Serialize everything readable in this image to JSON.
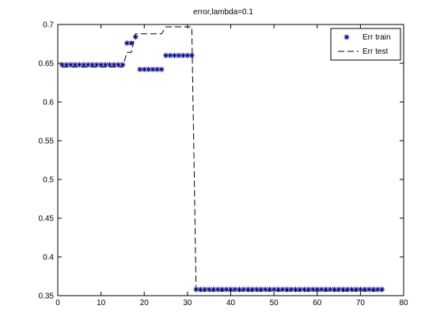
{
  "chart_data": {
    "type": "scatter",
    "title": "error,lambda=0.1",
    "xlim": [
      0,
      80
    ],
    "ylim": [
      0.35,
      0.7
    ],
    "x_ticks": [
      0,
      10,
      20,
      30,
      40,
      50,
      60,
      70,
      80
    ],
    "y_ticks": [
      0.35,
      0.4,
      0.45,
      0.5,
      0.55,
      0.6,
      0.65,
      0.7
    ],
    "grid": false,
    "legend_position": "top-right",
    "series": [
      {
        "name": "Err train",
        "style": "markers",
        "marker": "asterisk",
        "color": "#00008b",
        "x": [
          1,
          2,
          3,
          4,
          5,
          6,
          7,
          8,
          9,
          10,
          11,
          12,
          13,
          14,
          15,
          16,
          17,
          18,
          19,
          20,
          21,
          22,
          23,
          24,
          25,
          26,
          27,
          28,
          29,
          30,
          31,
          32,
          33,
          34,
          35,
          36,
          37,
          38,
          39,
          40,
          41,
          42,
          43,
          44,
          45,
          46,
          47,
          48,
          49,
          50,
          51,
          52,
          53,
          54,
          55,
          56,
          57,
          58,
          59,
          60,
          61,
          62,
          63,
          64,
          65,
          66,
          67,
          68,
          69,
          70,
          71,
          72,
          73,
          74,
          75
        ],
        "y": [
          0.648,
          0.648,
          0.648,
          0.648,
          0.648,
          0.648,
          0.648,
          0.648,
          0.648,
          0.648,
          0.648,
          0.648,
          0.648,
          0.648,
          0.648,
          0.676,
          0.676,
          0.684,
          0.642,
          0.642,
          0.642,
          0.642,
          0.642,
          0.642,
          0.66,
          0.66,
          0.66,
          0.66,
          0.66,
          0.66,
          0.66,
          0.358,
          0.358,
          0.358,
          0.358,
          0.358,
          0.358,
          0.358,
          0.358,
          0.358,
          0.358,
          0.358,
          0.358,
          0.358,
          0.358,
          0.358,
          0.358,
          0.358,
          0.358,
          0.358,
          0.358,
          0.358,
          0.358,
          0.358,
          0.358,
          0.358,
          0.358,
          0.358,
          0.358,
          0.358,
          0.358,
          0.358,
          0.358,
          0.358,
          0.358,
          0.358,
          0.358,
          0.358,
          0.358,
          0.358,
          0.358,
          0.358,
          0.358,
          0.358,
          0.358
        ]
      },
      {
        "name": "Err test",
        "style": "dashed",
        "color": "#000000",
        "x": [
          1,
          2,
          3,
          4,
          5,
          6,
          7,
          8,
          9,
          10,
          11,
          12,
          13,
          14,
          15,
          16,
          17,
          18,
          19,
          20,
          21,
          22,
          23,
          24,
          25,
          26,
          27,
          28,
          29,
          30,
          31,
          32,
          33,
          34,
          35,
          36,
          37,
          38,
          39,
          40,
          41,
          42,
          43,
          44,
          45,
          46,
          47,
          48,
          49,
          50,
          51,
          52,
          53,
          54,
          55,
          56,
          57,
          58,
          59,
          60,
          61,
          62,
          63,
          64,
          65,
          66,
          67,
          68,
          69,
          70,
          71,
          72,
          73,
          74,
          75
        ],
        "y": [
          0.645,
          0.645,
          0.645,
          0.645,
          0.645,
          0.645,
          0.645,
          0.645,
          0.645,
          0.645,
          0.645,
          0.645,
          0.645,
          0.645,
          0.645,
          0.664,
          0.664,
          0.688,
          0.688,
          0.688,
          0.688,
          0.688,
          0.688,
          0.688,
          0.697,
          0.697,
          0.697,
          0.697,
          0.697,
          0.697,
          0.697,
          0.356,
          0.356,
          0.356,
          0.356,
          0.356,
          0.356,
          0.356,
          0.356,
          0.356,
          0.356,
          0.356,
          0.356,
          0.356,
          0.356,
          0.356,
          0.356,
          0.356,
          0.356,
          0.356,
          0.356,
          0.356,
          0.356,
          0.356,
          0.356,
          0.356,
          0.356,
          0.356,
          0.356,
          0.356,
          0.356,
          0.356,
          0.356,
          0.356,
          0.356,
          0.356,
          0.356,
          0.356,
          0.356,
          0.356,
          0.356,
          0.356,
          0.356,
          0.356,
          0.356
        ]
      }
    ]
  }
}
